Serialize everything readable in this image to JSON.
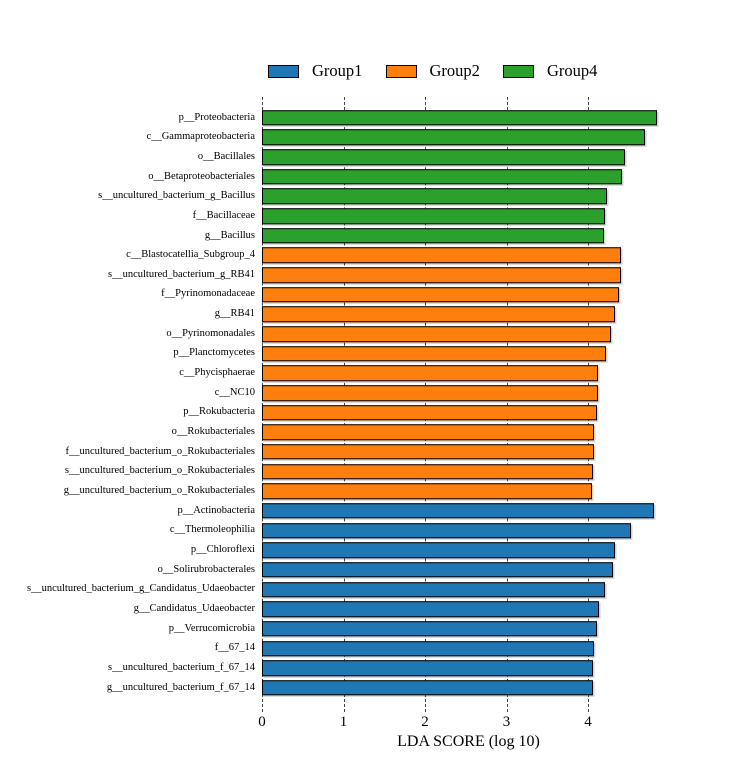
{
  "legend": {
    "items": [
      {
        "label": "Group1",
        "color": "#1f77b4"
      },
      {
        "label": "Group2",
        "color": "#ff7f0e"
      },
      {
        "label": "Group4",
        "color": "#2ca02c"
      }
    ]
  },
  "chart_data": {
    "type": "bar",
    "orientation": "horizontal",
    "title": "",
    "xlabel": "LDA SCORE (log 10)",
    "ylabel": "",
    "xticks": [
      0,
      1,
      2,
      3,
      4
    ],
    "xlim": [
      0,
      5
    ],
    "grid": "dashed-vertical",
    "legend_position": "top",
    "groups": {
      "Group1": "#1f77b4",
      "Group2": "#ff7f0e",
      "Group4": "#2ca02c"
    },
    "bars": [
      {
        "label": "p__Proteobacteria",
        "group": "Group4",
        "value": 4.82
      },
      {
        "label": "c__Gammaproteobacteria",
        "group": "Group4",
        "value": 4.67
      },
      {
        "label": "o__Bacillales",
        "group": "Group4",
        "value": 4.43
      },
      {
        "label": "o__Betaproteobacteriales",
        "group": "Group4",
        "value": 4.39
      },
      {
        "label": "s__uncultured_bacterium_g_Bacillus",
        "group": "Group4",
        "value": 4.21
      },
      {
        "label": "f__Bacillaceae",
        "group": "Group4",
        "value": 4.18
      },
      {
        "label": "g__Bacillus",
        "group": "Group4",
        "value": 4.17
      },
      {
        "label": "c__Blastocatellia_Subgroup_4",
        "group": "Group2",
        "value": 4.38
      },
      {
        "label": "s__uncultured_bacterium_g_RB41",
        "group": "Group2",
        "value": 4.38
      },
      {
        "label": "f__Pyrinomonadaceae",
        "group": "Group2",
        "value": 4.35
      },
      {
        "label": "g__RB41",
        "group": "Group2",
        "value": 4.31
      },
      {
        "label": "o__Pyrinomonadales",
        "group": "Group2",
        "value": 4.26
      },
      {
        "label": "p__Planctomycetes",
        "group": "Group2",
        "value": 4.2
      },
      {
        "label": "c__Phycisphaerae",
        "group": "Group2",
        "value": 4.1
      },
      {
        "label": "c__NC10",
        "group": "Group2",
        "value": 4.1
      },
      {
        "label": "p__Rokubacteria",
        "group": "Group2",
        "value": 4.08
      },
      {
        "label": "o__Rokubacteriales",
        "group": "Group2",
        "value": 4.05
      },
      {
        "label": "f__uncultured_bacterium_o_Rokubacteriales",
        "group": "Group2",
        "value": 4.05
      },
      {
        "label": "s__uncultured_bacterium_o_Rokubacteriales",
        "group": "Group2",
        "value": 4.04
      },
      {
        "label": "g__uncultured_bacterium_o_Rokubacteriales",
        "group": "Group2",
        "value": 4.02
      },
      {
        "label": "p__Actinobacteria",
        "group": "Group1",
        "value": 4.79
      },
      {
        "label": "c__Thermoleophilia",
        "group": "Group1",
        "value": 4.5
      },
      {
        "label": "p__Chloroflexi",
        "group": "Group1",
        "value": 4.31
      },
      {
        "label": "o__Solirubrobacterales",
        "group": "Group1",
        "value": 4.28
      },
      {
        "label": "s__uncultured_bacterium_g_Candidatus_Udaeobacter",
        "group": "Group1",
        "value": 4.18
      },
      {
        "label": "g__Candidatus_Udaeobacter",
        "group": "Group1",
        "value": 4.11
      },
      {
        "label": "p__Verrucomicrobia",
        "group": "Group1",
        "value": 4.09
      },
      {
        "label": "f__67_14",
        "group": "Group1",
        "value": 4.05
      },
      {
        "label": "s__uncultured_bacterium_f_67_14",
        "group": "Group1",
        "value": 4.04
      },
      {
        "label": "g__uncultured_bacterium_f_67_14",
        "group": "Group1",
        "value": 4.04
      }
    ]
  }
}
